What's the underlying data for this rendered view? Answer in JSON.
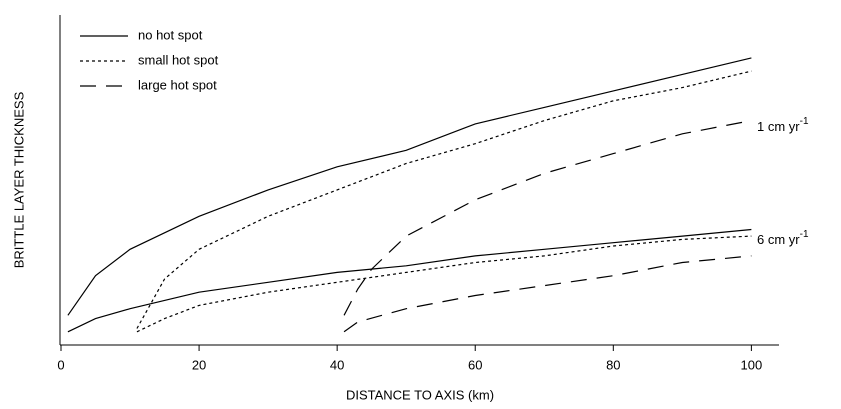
{
  "chart_data": {
    "type": "line",
    "xlabel": "DISTANCE TO AXIS (km)",
    "ylabel": "BRITTLE LAYER THICKNESS",
    "xlim": [
      0,
      104
    ],
    "xticks": [
      0,
      20,
      40,
      60,
      80,
      100
    ],
    "ylim": [
      0,
      100
    ],
    "legend": [
      {
        "name": "no hot spot",
        "dash": "solid"
      },
      {
        "name": "small hot spot",
        "dash": "dotted"
      },
      {
        "name": "large hot spot",
        "dash": "dashed"
      }
    ],
    "annotations": [
      {
        "text": "1 cm yr",
        "sup": "-1"
      },
      {
        "text": "6 cm yr",
        "sup": "-1"
      }
    ],
    "series": [
      {
        "dash": "solid",
        "color": "#000",
        "x": [
          1,
          5,
          10,
          20,
          30,
          40,
          50,
          60,
          70,
          80,
          90,
          100
        ],
        "values": [
          9,
          21,
          29,
          39,
          47,
          54,
          59,
          67,
          72,
          77,
          82,
          87
        ]
      },
      {
        "dash": "dotted",
        "color": "#000",
        "x": [
          11,
          15,
          20,
          30,
          40,
          50,
          60,
          70,
          80,
          90,
          100
        ],
        "values": [
          5,
          20,
          29,
          39,
          47,
          55,
          61,
          68,
          74,
          78,
          83
        ]
      },
      {
        "dash": "dashed",
        "color": "#000",
        "x": [
          41,
          43,
          45,
          50,
          60,
          70,
          80,
          90,
          100
        ],
        "values": [
          9,
          17,
          23,
          33,
          44,
          52,
          58,
          64,
          68
        ]
      },
      {
        "dash": "solid",
        "color": "#000",
        "x": [
          1,
          5,
          10,
          20,
          30,
          40,
          50,
          60,
          70,
          80,
          90,
          100
        ],
        "values": [
          4,
          8,
          11,
          16,
          19,
          22,
          24,
          27,
          29,
          31,
          33,
          35
        ]
      },
      {
        "dash": "dotted",
        "color": "#000",
        "x": [
          11,
          15,
          20,
          30,
          40,
          50,
          60,
          70,
          80,
          90,
          100
        ],
        "values": [
          4,
          8,
          12,
          16,
          19,
          22,
          25,
          27,
          30,
          32,
          33
        ]
      },
      {
        "dash": "dashed",
        "color": "#000",
        "x": [
          41,
          43,
          50,
          60,
          70,
          80,
          90,
          100
        ],
        "values": [
          4,
          7,
          11,
          15,
          18,
          21,
          25,
          27
        ]
      }
    ]
  }
}
